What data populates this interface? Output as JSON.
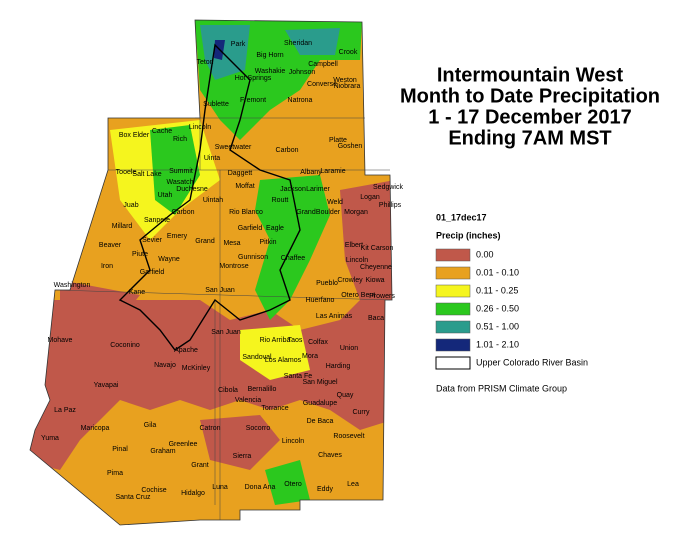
{
  "title": [
    "Intermountain West",
    "Month to Date Precipitation",
    "1 - 17 December 2017",
    "Ending 7AM MST"
  ],
  "legend": {
    "id": "01_17dec17",
    "heading": "Precip (inches)",
    "items": [
      {
        "label": "0.00",
        "color": "#c0584a"
      },
      {
        "label": "0.01 - 0.10",
        "color": "#e8a11f"
      },
      {
        "label": "0.11 - 0.25",
        "color": "#f5f51e"
      },
      {
        "label": "0.26 - 0.50",
        "color": "#2bc81e"
      },
      {
        "label": "0.51 - 1.00",
        "color": "#2a9c8c"
      },
      {
        "label": "1.01 - 2.10",
        "color": "#14287a"
      }
    ],
    "basin": "Upper Colorado River Basin"
  },
  "credit": "Data from PRISM Climate Group",
  "places": [
    "Park",
    "Big Horn",
    "Sheridan",
    "Crook",
    "Teton",
    "Hot Springs",
    "Washakie",
    "Johnson",
    "Campbell",
    "Weston",
    "Fremont",
    "Natrona",
    "Converse",
    "Niobrara",
    "Sublette",
    "Lincoln",
    "Goshen",
    "Platte",
    "Sweetwater",
    "Carbon",
    "Albany",
    "Laramie",
    "Box Elder",
    "Cache",
    "Rich",
    "Uinta",
    "Daggett",
    "Tooele",
    "Salt Lake",
    "Summit",
    "Wasatch",
    "Utah",
    "Duchesne",
    "Uintah",
    "Moffat",
    "Routt",
    "Jackson",
    "Larimer",
    "Logan",
    "Sedgwick",
    "Phillips",
    "Weld",
    "Morgan",
    "Juab",
    "Millard",
    "Sanpete",
    "Carbon",
    "Rio Blanco",
    "Garfield",
    "Eagle",
    "Grand",
    "Boulder",
    "Emery",
    "Grand",
    "Mesa",
    "Pitkin",
    "Beaver",
    "Sevier",
    "Piute",
    "Wayne",
    "Iron",
    "Garfield",
    "Washington",
    "Kane",
    "San Juan",
    "Montrose",
    "Gunnison",
    "Chaffee",
    "Elbert",
    "Lincoln",
    "Kit Carson",
    "Cheyenne",
    "Kiowa",
    "Crowley",
    "Otero",
    "Bent",
    "Prowers",
    "Pueblo",
    "Huerfano",
    "Las Animas",
    "Baca",
    "Mohave",
    "Coconino",
    "Navajo",
    "Apache",
    "San Juan",
    "Rio Arriba",
    "Taos",
    "Colfax",
    "Union",
    "Yavapai",
    "Mora",
    "Harding",
    "McKinley",
    "Sandoval",
    "Los Alamos",
    "Santa Fe",
    "San Miguel",
    "La Paz",
    "Cibola",
    "Bernalillo",
    "Quay",
    "Maricopa",
    "Valencia",
    "Torrance",
    "Guadalupe",
    "Curry",
    "Gila",
    "Catron",
    "Socorro",
    "De Baca",
    "Roosevelt",
    "Yuma",
    "Pinal",
    "Graham",
    "Greenlee",
    "Lincoln",
    "Chaves",
    "Sierra",
    "Pima",
    "Grant",
    "Otero",
    "Eddy",
    "Lea",
    "Dona Ana",
    "Luna",
    "Cochise",
    "Hidalgo",
    "Santa Cruz"
  ]
}
